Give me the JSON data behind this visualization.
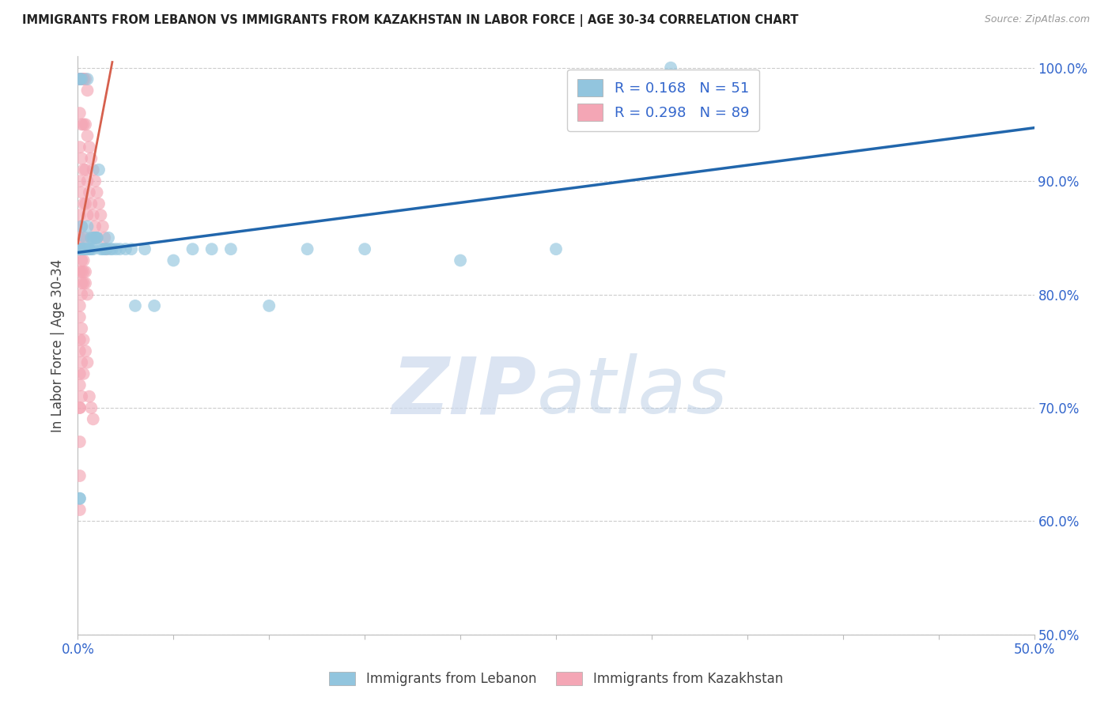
{
  "title": "IMMIGRANTS FROM LEBANON VS IMMIGRANTS FROM KAZAKHSTAN IN LABOR FORCE | AGE 30-34 CORRELATION CHART",
  "source": "Source: ZipAtlas.com",
  "ylabel": "In Labor Force | Age 30-34",
  "legend_r_blue": "R = 0.168",
  "legend_n_blue": "N = 51",
  "legend_r_pink": "R = 0.298",
  "legend_n_pink": "N = 89",
  "legend_blue_label": "Immigrants from Lebanon",
  "legend_pink_label": "Immigrants from Kazakhstan",
  "blue_color": "#92c5de",
  "pink_color": "#f4a6b5",
  "trend_blue_color": "#2166ac",
  "trend_pink_color": "#d6604d",
  "xlim": [
    0.0,
    0.5
  ],
  "ylim": [
    0.5,
    1.01
  ],
  "ytick_vals": [
    0.5,
    0.6,
    0.7,
    0.8,
    0.9,
    1.0
  ],
  "xtick_vals": [
    0.0,
    0.05,
    0.1,
    0.15,
    0.2,
    0.25,
    0.3,
    0.35,
    0.4,
    0.45,
    0.5
  ],
  "blue_trend_x": [
    0.0,
    0.5
  ],
  "blue_trend_y": [
    0.837,
    0.947
  ],
  "pink_trend_x": [
    0.0,
    0.018
  ],
  "pink_trend_y": [
    0.845,
    1.005
  ],
  "blue_x": [
    0.001,
    0.001,
    0.002,
    0.002,
    0.003,
    0.003,
    0.004,
    0.004,
    0.005,
    0.005,
    0.006,
    0.006,
    0.007,
    0.007,
    0.008,
    0.008,
    0.009,
    0.009,
    0.01,
    0.01,
    0.011,
    0.012,
    0.013,
    0.014,
    0.015,
    0.016,
    0.017,
    0.018,
    0.02,
    0.022,
    0.025,
    0.028,
    0.03,
    0.035,
    0.04,
    0.05,
    0.06,
    0.07,
    0.08,
    0.1,
    0.12,
    0.15,
    0.2,
    0.25,
    0.31,
    0.001,
    0.001,
    0.001,
    0.001,
    0.002,
    0.005
  ],
  "blue_y": [
    0.84,
    0.84,
    0.84,
    0.86,
    0.84,
    0.84,
    0.84,
    0.85,
    0.84,
    0.86,
    0.84,
    0.84,
    0.84,
    0.85,
    0.85,
    0.84,
    0.85,
    0.85,
    0.85,
    0.85,
    0.91,
    0.84,
    0.84,
    0.84,
    0.84,
    0.85,
    0.84,
    0.84,
    0.84,
    0.84,
    0.84,
    0.84,
    0.79,
    0.84,
    0.79,
    0.83,
    0.84,
    0.84,
    0.84,
    0.79,
    0.84,
    0.84,
    0.83,
    0.84,
    1.0,
    0.99,
    0.99,
    0.62,
    0.62,
    0.99,
    0.99
  ],
  "pink_x": [
    0.001,
    0.001,
    0.001,
    0.001,
    0.001,
    0.001,
    0.001,
    0.001,
    0.001,
    0.001,
    0.001,
    0.001,
    0.001,
    0.002,
    0.002,
    0.002,
    0.002,
    0.002,
    0.002,
    0.002,
    0.002,
    0.003,
    0.003,
    0.003,
    0.003,
    0.003,
    0.003,
    0.004,
    0.004,
    0.004,
    0.004,
    0.005,
    0.005,
    0.005,
    0.005,
    0.006,
    0.006,
    0.007,
    0.007,
    0.007,
    0.008,
    0.008,
    0.009,
    0.009,
    0.01,
    0.01,
    0.011,
    0.012,
    0.013,
    0.014,
    0.015,
    0.001,
    0.001,
    0.001,
    0.001,
    0.001,
    0.001,
    0.001,
    0.001,
    0.001,
    0.001,
    0.001,
    0.001,
    0.001,
    0.001,
    0.002,
    0.002,
    0.002,
    0.002,
    0.003,
    0.003,
    0.003,
    0.004,
    0.004,
    0.005,
    0.001,
    0.002,
    0.003,
    0.004,
    0.005,
    0.001,
    0.002,
    0.003,
    0.001,
    0.002,
    0.001,
    0.006,
    0.007,
    0.008
  ],
  "pink_y": [
    0.99,
    0.99,
    0.99,
    0.99,
    0.99,
    0.99,
    0.99,
    0.99,
    0.99,
    0.99,
    0.99,
    0.84,
    0.84,
    0.99,
    0.99,
    0.99,
    0.95,
    0.92,
    0.89,
    0.86,
    0.84,
    0.99,
    0.99,
    0.95,
    0.91,
    0.88,
    0.85,
    0.99,
    0.95,
    0.91,
    0.88,
    0.98,
    0.94,
    0.9,
    0.87,
    0.93,
    0.89,
    0.92,
    0.88,
    0.85,
    0.91,
    0.87,
    0.9,
    0.86,
    0.89,
    0.85,
    0.88,
    0.87,
    0.86,
    0.85,
    0.84,
    0.96,
    0.93,
    0.9,
    0.87,
    0.85,
    0.82,
    0.79,
    0.76,
    0.73,
    0.7,
    0.67,
    0.64,
    0.61,
    0.84,
    0.83,
    0.82,
    0.81,
    0.8,
    0.83,
    0.82,
    0.81,
    0.82,
    0.81,
    0.8,
    0.78,
    0.77,
    0.76,
    0.75,
    0.74,
    0.75,
    0.74,
    0.73,
    0.72,
    0.71,
    0.7,
    0.71,
    0.7,
    0.69
  ]
}
